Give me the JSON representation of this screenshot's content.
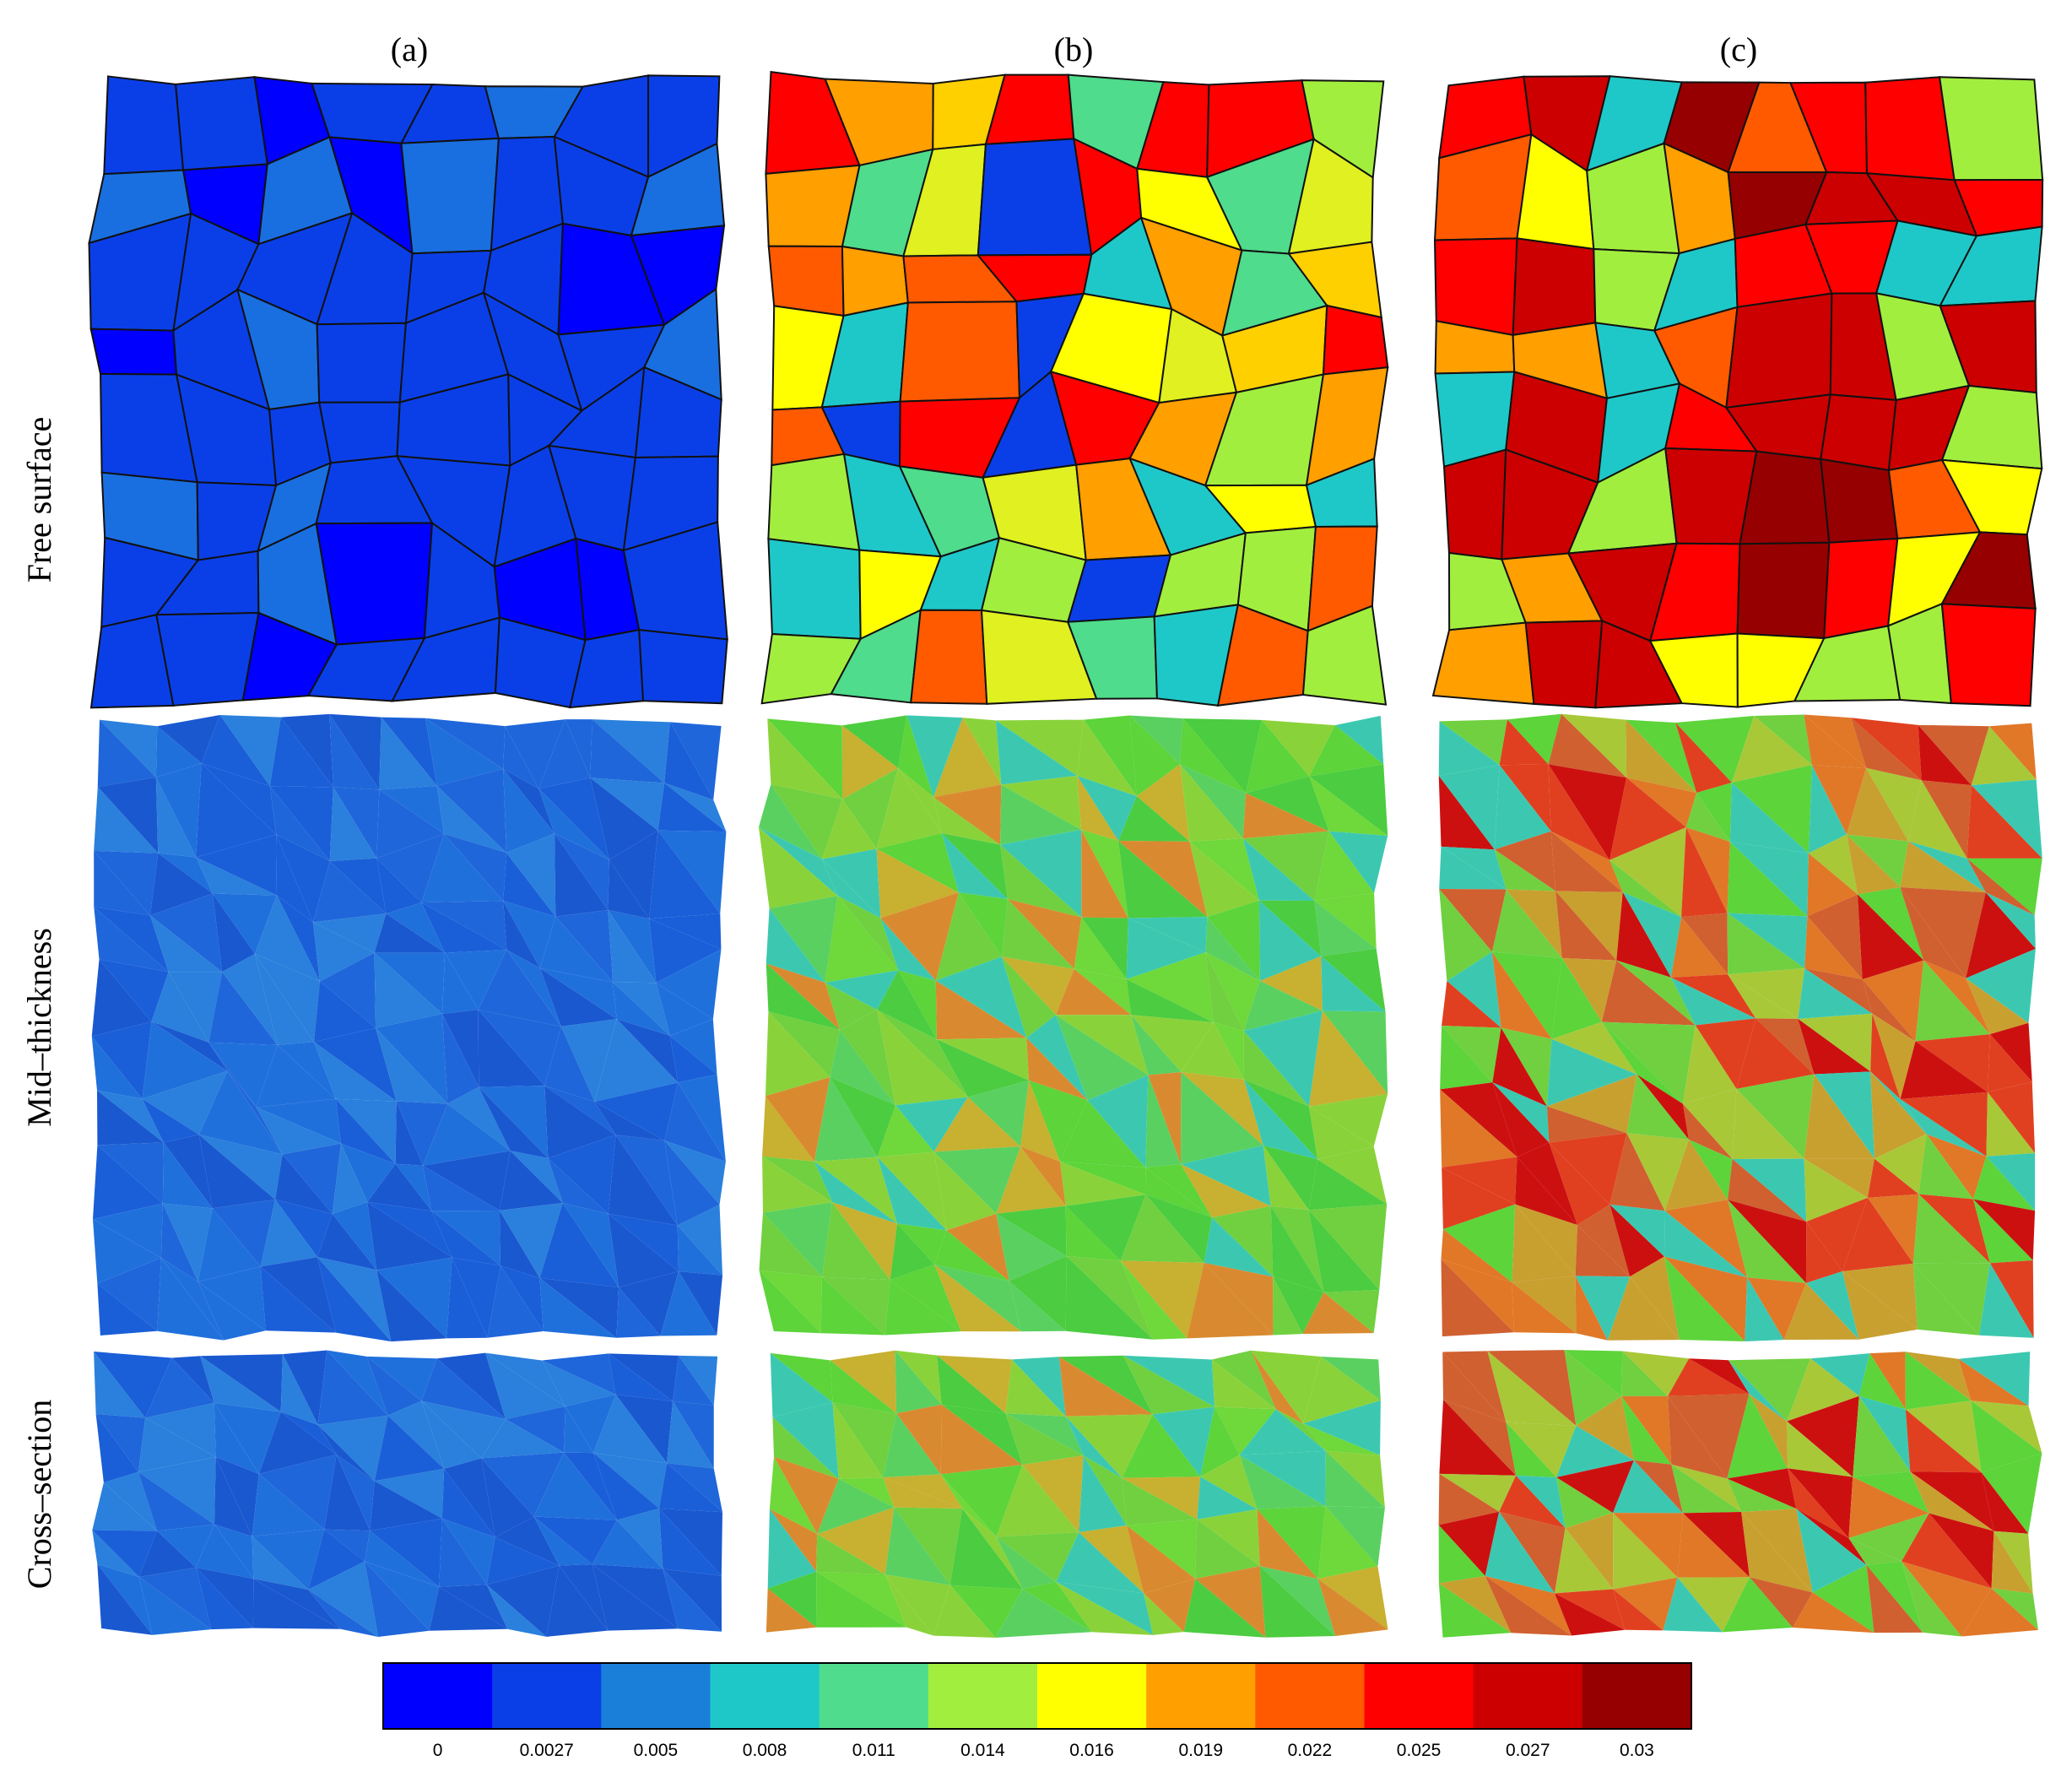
{
  "columns": [
    "(a)",
    "(b)",
    "(c)"
  ],
  "rows": [
    "Free surface",
    "Mid–thickness",
    "Cross–section"
  ],
  "colorbar": {
    "colors": [
      "#0000ff",
      "#0a3fe8",
      "#1a7fd9",
      "#1fc8c8",
      "#4fdc8c",
      "#a2ee3e",
      "#ffff00",
      "#ff9f00",
      "#ff5a00",
      "#ff0000",
      "#cc0000",
      "#960000"
    ],
    "labels": [
      "0",
      "0.0027",
      "0.005",
      "0.008",
      "0.011",
      "0.014",
      "0.016",
      "0.019",
      "0.022",
      "0.025",
      "0.027",
      "0.03"
    ]
  }
}
